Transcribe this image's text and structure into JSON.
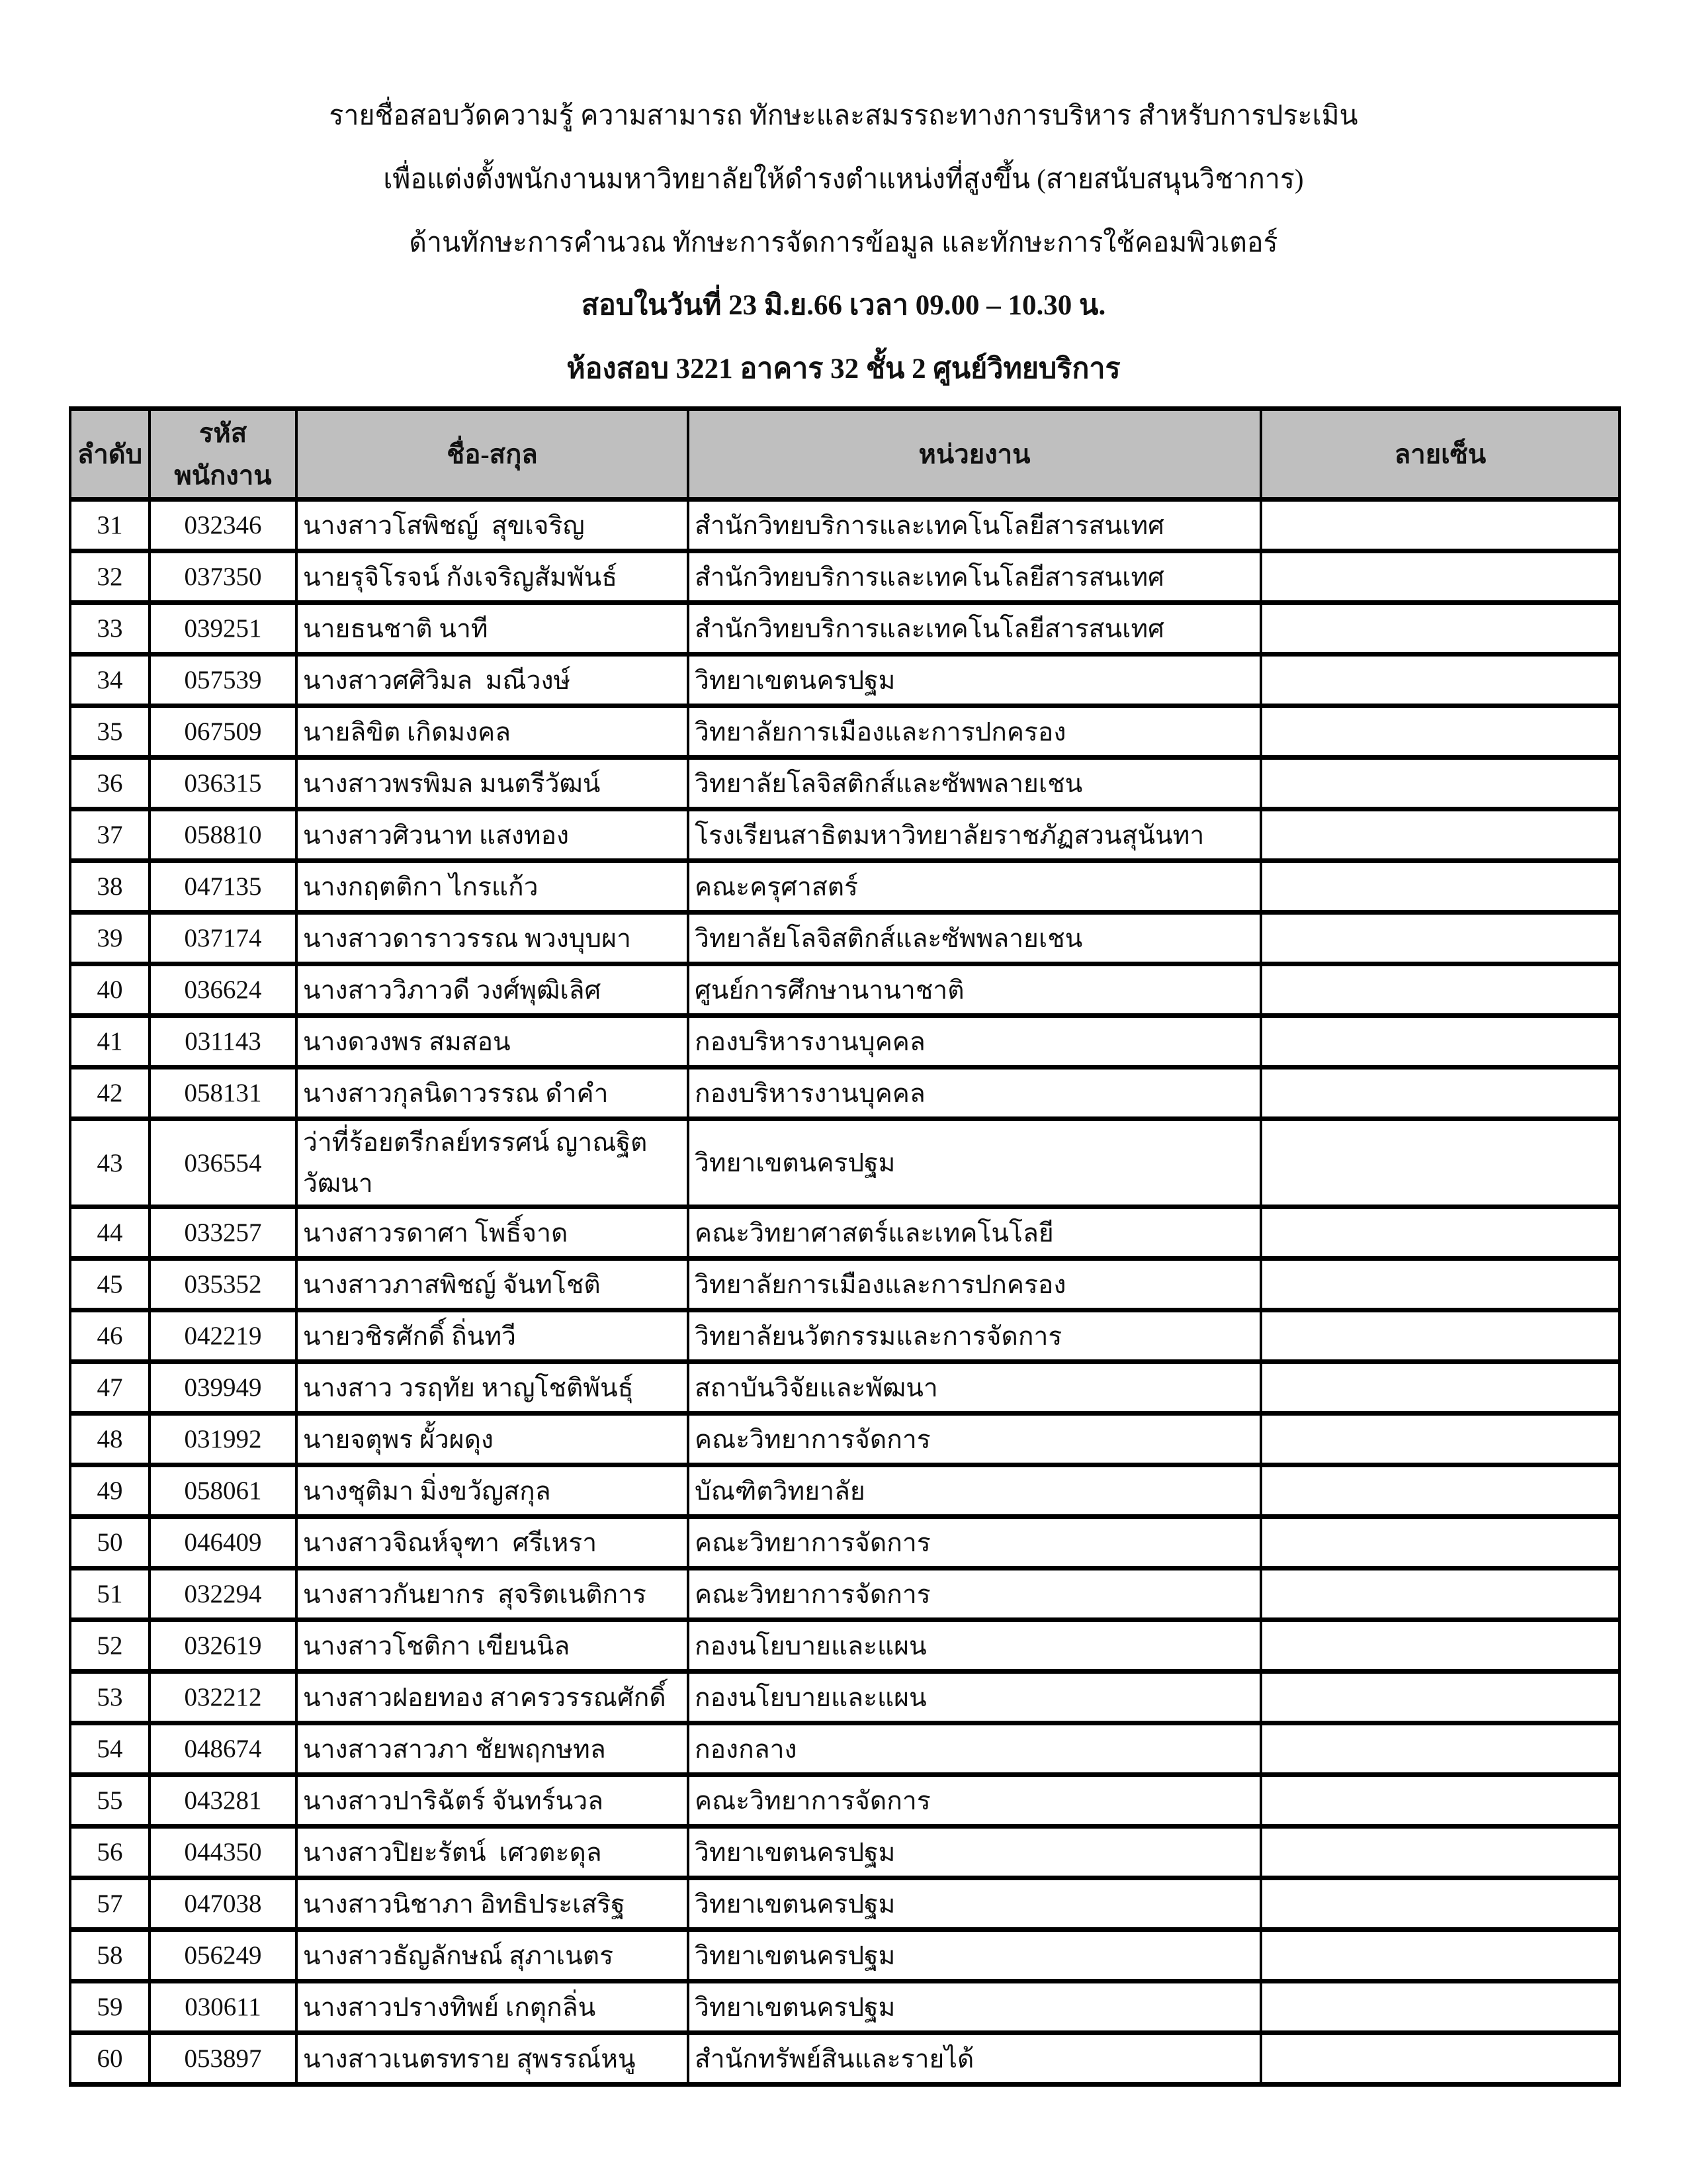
{
  "document": {
    "title_lines": [
      "รายชื่อสอบวัดความรู้ ความสามารถ ทักษะและสมรรถะทางการบริหาร สำหรับการประเมิน",
      "เพื่อแต่งตั้งพนักงานมหาวิทยาลัยให้ดำรงตำแหน่งที่สูงขึ้น (สายสนับสนุนวิชาการ)",
      "ด้านทักษะการคำนวณ ทักษะการจัดการข้อมูล และทักษะการใช้คอมพิวเตอร์",
      "สอบในวันที่ 23 มิ.ย.66 เวลา 09.00 – 10.30 น.",
      "ห้องสอบ 3221 อาคาร 32 ชั้น 2 ศูนย์วิทยบริการ"
    ]
  },
  "table": {
    "header_bg": "#bfbfbf",
    "headers": [
      "ลำดับ",
      "รหัสพนักงาน",
      "ชื่อ-สกุล",
      "หน่วยงาน",
      "ลายเซ็น"
    ],
    "rows": [
      {
        "no": "31",
        "emp_id": "032346",
        "name": "นางสาวโสพิชญ์  สุขเจริญ",
        "department": "สำนักวิทยบริการและเทคโนโลยีสารสนเทศ",
        "signature": ""
      },
      {
        "no": "32",
        "emp_id": "037350",
        "name": "นายรุจิโรจน์ กังเจริญสัมพันธ์",
        "department": "สำนักวิทยบริการและเทคโนโลยีสารสนเทศ",
        "signature": ""
      },
      {
        "no": "33",
        "emp_id": "039251",
        "name": "นายธนชาติ นาที",
        "department": "สำนักวิทยบริการและเทคโนโลยีสารสนเทศ",
        "signature": ""
      },
      {
        "no": "34",
        "emp_id": "057539",
        "name": "นางสาวศศิวิมล  มณีวงษ์",
        "department": "วิทยาเขตนครปฐม",
        "signature": ""
      },
      {
        "no": "35",
        "emp_id": "067509",
        "name": "นายลิขิต เกิดมงคล",
        "department": "วิทยาลัยการเมืองและการปกครอง",
        "signature": ""
      },
      {
        "no": "36",
        "emp_id": "036315",
        "name": "นางสาวพรพิมล มนตรีวัฒน์",
        "department": "วิทยาลัยโลจิสติกส์และซัพพลายเชน",
        "signature": ""
      },
      {
        "no": "37",
        "emp_id": "058810",
        "name": "นางสาวศิวนาท แสงทอง",
        "department": "โรงเรียนสาธิตมหาวิทยาลัยราชภัฏสวนสุนันทา",
        "signature": ""
      },
      {
        "no": "38",
        "emp_id": "047135",
        "name": "นางกฤตติกา ไกรแก้ว",
        "department": "คณะครุศาสตร์",
        "signature": ""
      },
      {
        "no": "39",
        "emp_id": "037174",
        "name": "นางสาวดาราวรรณ พวงบุบผา",
        "department": "วิทยาลัยโลจิสติกส์และซัพพลายเชน",
        "signature": ""
      },
      {
        "no": "40",
        "emp_id": "036624",
        "name": "นางสาววิภาวดี วงศ์พุฒิเลิศ",
        "department": "ศูนย์การศึกษานานาชาติ",
        "signature": ""
      },
      {
        "no": "41",
        "emp_id": "031143",
        "name": "นางดวงพร สมสอน",
        "department": "กองบริหารงานบุคคล",
        "signature": ""
      },
      {
        "no": "42",
        "emp_id": "058131",
        "name": "นางสาวกุลนิดาวรรณ ดำคำ",
        "department": "กองบริหารงานบุคคล",
        "signature": ""
      },
      {
        "no": "43",
        "emp_id": "036554",
        "name": "ว่าที่ร้อยตรีกลย์ทรรศน์ ญาณฐิตวัฒนา",
        "department": "วิทยาเขตนครปฐม",
        "signature": ""
      },
      {
        "no": "44",
        "emp_id": "033257",
        "name": "นางสาวรดาศา โพธิ์จาด",
        "department": "คณะวิทยาศาสตร์และเทคโนโลยี",
        "signature": ""
      },
      {
        "no": "45",
        "emp_id": "035352",
        "name": "นางสาวภาสพิชญ์ จันทโชติ",
        "department": "วิทยาลัยการเมืองและการปกครอง",
        "signature": ""
      },
      {
        "no": "46",
        "emp_id": "042219",
        "name": "นายวชิรศักดิ์ ถิ่นทวี",
        "department": "วิทยาลัยนวัตกรรมและการจัดการ",
        "signature": ""
      },
      {
        "no": "47",
        "emp_id": "039949",
        "name": "นางสาว วรฤทัย หาญโชติพันธุ์",
        "department": "สถาบันวิจัยและพัฒนา",
        "signature": ""
      },
      {
        "no": "48",
        "emp_id": "031992",
        "name": "นายจตุพร ผั้วผดุง",
        "department": "คณะวิทยาการจัดการ",
        "signature": ""
      },
      {
        "no": "49",
        "emp_id": "058061",
        "name": "นางชุติมา มิ่งขวัญสกุล",
        "department": "บัณฑิตวิทยาลัย",
        "signature": ""
      },
      {
        "no": "50",
        "emp_id": "046409",
        "name": "นางสาวจิณห์จุฑา  ศรีเหรา",
        "department": "คณะวิทยาการจัดการ",
        "signature": ""
      },
      {
        "no": "51",
        "emp_id": "032294",
        "name": "นางสาวกันยากร  สุจริตเนติการ",
        "department": "คณะวิทยาการจัดการ",
        "signature": ""
      },
      {
        "no": "52",
        "emp_id": "032619",
        "name": "นางสาวโชติกา เขียนนิล",
        "department": "กองนโยบายและแผน",
        "signature": ""
      },
      {
        "no": "53",
        "emp_id": "032212",
        "name": "นางสาวฝอยทอง สาครวรรณศักดิ์",
        "department": "กองนโยบายและแผน",
        "signature": ""
      },
      {
        "no": "54",
        "emp_id": "048674",
        "name": "นางสาวสาวภา ชัยพฤกษทล",
        "department": "กองกลาง",
        "signature": ""
      },
      {
        "no": "55",
        "emp_id": "043281",
        "name": "นางสาวปาริฉัตร์ จันทร์นวล",
        "department": "คณะวิทยาการจัดการ",
        "signature": ""
      },
      {
        "no": "56",
        "emp_id": "044350",
        "name": "นางสาวปิยะรัตน์  เศวตะดุล",
        "department": "วิทยาเขตนครปฐม",
        "signature": ""
      },
      {
        "no": "57",
        "emp_id": "047038",
        "name": "นางสาวนิชาภา อิทธิประเสริฐ",
        "department": "วิทยาเขตนครปฐม",
        "signature": ""
      },
      {
        "no": "58",
        "emp_id": "056249",
        "name": "นางสาวธัญลักษณ์ สุภาเนตร",
        "department": "วิทยาเขตนครปฐม",
        "signature": ""
      },
      {
        "no": "59",
        "emp_id": "030611",
        "name": "นางสาวปรางทิพย์ เกตุกลิ่น",
        "department": "วิทยาเขตนครปฐม",
        "signature": ""
      },
      {
        "no": "60",
        "emp_id": "053897",
        "name": "นางสาวเนตรทราย สุพรรณ์หนู",
        "department": "สำนักทรัพย์สินและรายได้",
        "signature": ""
      }
    ]
  }
}
